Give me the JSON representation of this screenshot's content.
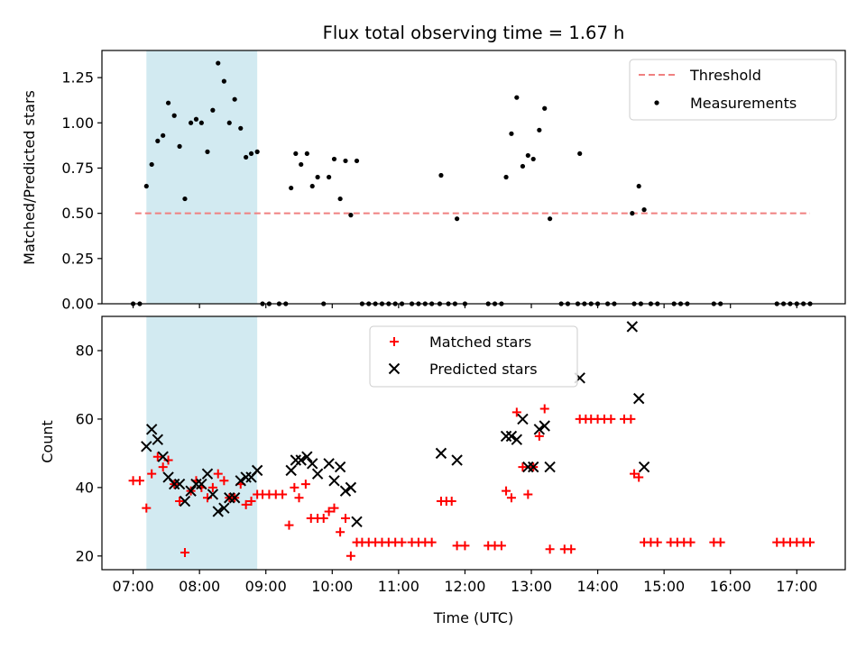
{
  "chart_data": [
    {
      "panel": "top",
      "type": "scatter",
      "title": "Flux total observing time = 1.67 h",
      "ylabel": "Matched/Predicted stars",
      "xlabel": "",
      "ylim": [
        0,
        1.4
      ],
      "yticks": [
        0.0,
        0.25,
        0.5,
        0.75,
        1.0,
        1.25
      ],
      "ytick_labels": [
        "0.00",
        "0.25",
        "0.50",
        "0.75",
        "1.00",
        "1.25"
      ],
      "xlim": [
        6.53,
        17.73
      ],
      "xticks": [
        7,
        8,
        9,
        10,
        11,
        12,
        13,
        14,
        15,
        16,
        17
      ],
      "highlight_span": [
        7.2,
        8.87
      ],
      "highlight_color": "#add8e6",
      "legend_position": "upper right",
      "threshold": {
        "name": "Threshold",
        "y": 0.5,
        "x_range": [
          7.03,
          17.2
        ],
        "color": "#f08080",
        "style": "dashed"
      },
      "series": [
        {
          "name": "Measurements",
          "color": "#000000",
          "marker": "dot",
          "points": [
            [
              7.0,
              0.0
            ],
            [
              7.1,
              0.0
            ],
            [
              7.2,
              0.65
            ],
            [
              7.28,
              0.77
            ],
            [
              7.37,
              0.9
            ],
            [
              7.45,
              0.93
            ],
            [
              7.53,
              1.11
            ],
            [
              7.62,
              1.04
            ],
            [
              7.7,
              0.87
            ],
            [
              7.78,
              0.58
            ],
            [
              7.87,
              1.0
            ],
            [
              7.95,
              1.02
            ],
            [
              8.03,
              1.0
            ],
            [
              8.12,
              0.84
            ],
            [
              8.2,
              1.07
            ],
            [
              8.28,
              1.33
            ],
            [
              8.37,
              1.23
            ],
            [
              8.45,
              1.0
            ],
            [
              8.53,
              1.13
            ],
            [
              8.62,
              0.97
            ],
            [
              8.7,
              0.81
            ],
            [
              8.78,
              0.83
            ],
            [
              8.87,
              0.84
            ],
            [
              8.95,
              0.0
            ],
            [
              9.05,
              0.0
            ],
            [
              9.2,
              0.0
            ],
            [
              9.3,
              0.0
            ],
            [
              9.38,
              0.64
            ],
            [
              9.45,
              0.83
            ],
            [
              9.53,
              0.77
            ],
            [
              9.62,
              0.83
            ],
            [
              9.7,
              0.65
            ],
            [
              9.78,
              0.7
            ],
            [
              9.87,
              0.0
            ],
            [
              9.95,
              0.7
            ],
            [
              10.03,
              0.8
            ],
            [
              10.12,
              0.58
            ],
            [
              10.2,
              0.79
            ],
            [
              10.28,
              0.49
            ],
            [
              10.37,
              0.79
            ],
            [
              10.45,
              0.0
            ],
            [
              10.55,
              0.0
            ],
            [
              10.65,
              0.0
            ],
            [
              10.75,
              0.0
            ],
            [
              10.85,
              0.0
            ],
            [
              10.95,
              0.0
            ],
            [
              11.05,
              0.0
            ],
            [
              11.2,
              0.0
            ],
            [
              11.3,
              0.0
            ],
            [
              11.4,
              0.0
            ],
            [
              11.5,
              0.0
            ],
            [
              11.62,
              0.0
            ],
            [
              11.64,
              0.71
            ],
            [
              11.75,
              0.0
            ],
            [
              11.85,
              0.0
            ],
            [
              11.88,
              0.47
            ],
            [
              12.0,
              0.0
            ],
            [
              12.35,
              0.0
            ],
            [
              12.45,
              0.0
            ],
            [
              12.55,
              0.0
            ],
            [
              12.62,
              0.7
            ],
            [
              12.7,
              0.94
            ],
            [
              12.78,
              1.14
            ],
            [
              12.87,
              0.76
            ],
            [
              12.95,
              0.82
            ],
            [
              13.03,
              0.8
            ],
            [
              13.12,
              0.96
            ],
            [
              13.2,
              1.08
            ],
            [
              13.28,
              0.47
            ],
            [
              13.45,
              0.0
            ],
            [
              13.55,
              0.0
            ],
            [
              13.7,
              0.0
            ],
            [
              13.73,
              0.83
            ],
            [
              13.8,
              0.0
            ],
            [
              13.9,
              0.0
            ],
            [
              14.0,
              0.0
            ],
            [
              14.15,
              0.0
            ],
            [
              14.25,
              0.0
            ],
            [
              14.52,
              0.5
            ],
            [
              14.62,
              0.65
            ],
            [
              14.7,
              0.52
            ],
            [
              14.55,
              0.0
            ],
            [
              14.65,
              0.0
            ],
            [
              14.8,
              0.0
            ],
            [
              14.9,
              0.0
            ],
            [
              15.15,
              0.0
            ],
            [
              15.25,
              0.0
            ],
            [
              15.35,
              0.0
            ],
            [
              15.75,
              0.0
            ],
            [
              15.85,
              0.0
            ],
            [
              16.7,
              0.0
            ],
            [
              16.8,
              0.0
            ],
            [
              16.9,
              0.0
            ],
            [
              17.0,
              0.0
            ],
            [
              17.1,
              0.0
            ],
            [
              17.2,
              0.0
            ]
          ]
        }
      ]
    },
    {
      "panel": "bottom",
      "type": "scatter",
      "title": "",
      "ylabel": "Count",
      "xlabel": "Time (UTC)",
      "ylim": [
        16,
        90
      ],
      "yticks": [
        20,
        40,
        60,
        80
      ],
      "xlim": [
        6.53,
        17.73
      ],
      "xticks": [
        7,
        8,
        9,
        10,
        11,
        12,
        13,
        14,
        15,
        16,
        17
      ],
      "xtick_labels": [
        "07:00",
        "08:00",
        "09:00",
        "10:00",
        "11:00",
        "12:00",
        "13:00",
        "14:00",
        "15:00",
        "16:00",
        "17:00"
      ],
      "highlight_span": [
        7.2,
        8.87
      ],
      "highlight_color": "#add8e6",
      "legend_position": "upper center",
      "series": [
        {
          "name": "Matched stars",
          "color": "#ff0000",
          "marker": "plus",
          "points": [
            [
              7.0,
              42
            ],
            [
              7.1,
              42
            ],
            [
              7.2,
              34
            ],
            [
              7.28,
              44
            ],
            [
              7.37,
              49
            ],
            [
              7.45,
              46
            ],
            [
              7.53,
              48
            ],
            [
              7.62,
              41
            ],
            [
              7.7,
              36
            ],
            [
              7.78,
              21
            ],
            [
              7.87,
              39
            ],
            [
              7.95,
              42
            ],
            [
              8.03,
              40
            ],
            [
              8.12,
              37
            ],
            [
              8.2,
              40
            ],
            [
              8.28,
              44
            ],
            [
              8.37,
              42
            ],
            [
              8.45,
              37
            ],
            [
              8.53,
              37
            ],
            [
              8.62,
              41
            ],
            [
              8.7,
              35
            ],
            [
              8.78,
              36
            ],
            [
              8.87,
              38
            ],
            [
              8.95,
              38
            ],
            [
              9.05,
              38
            ],
            [
              9.15,
              38
            ],
            [
              9.25,
              38
            ],
            [
              9.35,
              29
            ],
            [
              9.43,
              40
            ],
            [
              9.5,
              37
            ],
            [
              9.6,
              41
            ],
            [
              9.68,
              31
            ],
            [
              9.78,
              31
            ],
            [
              9.87,
              31
            ],
            [
              9.95,
              33
            ],
            [
              10.03,
              34
            ],
            [
              10.12,
              27
            ],
            [
              10.2,
              31
            ],
            [
              10.28,
              20
            ],
            [
              10.37,
              24
            ],
            [
              10.45,
              24
            ],
            [
              10.55,
              24
            ],
            [
              10.65,
              24
            ],
            [
              10.75,
              24
            ],
            [
              10.85,
              24
            ],
            [
              10.95,
              24
            ],
            [
              11.05,
              24
            ],
            [
              11.2,
              24
            ],
            [
              11.3,
              24
            ],
            [
              11.4,
              24
            ],
            [
              11.5,
              24
            ],
            [
              11.64,
              36
            ],
            [
              11.72,
              36
            ],
            [
              11.8,
              36
            ],
            [
              11.88,
              23
            ],
            [
              12.0,
              23
            ],
            [
              12.35,
              23
            ],
            [
              12.45,
              23
            ],
            [
              12.55,
              23
            ],
            [
              12.62,
              39
            ],
            [
              12.7,
              37
            ],
            [
              12.78,
              62
            ],
            [
              12.87,
              46
            ],
            [
              12.95,
              38
            ],
            [
              13.03,
              46
            ],
            [
              13.12,
              55
            ],
            [
              13.2,
              63
            ],
            [
              13.28,
              22
            ],
            [
              13.5,
              22
            ],
            [
              13.6,
              22
            ],
            [
              13.73,
              60
            ],
            [
              13.82,
              60
            ],
            [
              13.9,
              60
            ],
            [
              14.0,
              60
            ],
            [
              14.1,
              60
            ],
            [
              14.2,
              60
            ],
            [
              14.4,
              60
            ],
            [
              14.5,
              60
            ],
            [
              14.55,
              44
            ],
            [
              14.62,
              43
            ],
            [
              14.7,
              24
            ],
            [
              14.8,
              24
            ],
            [
              14.9,
              24
            ],
            [
              15.1,
              24
            ],
            [
              15.2,
              24
            ],
            [
              15.3,
              24
            ],
            [
              15.4,
              24
            ],
            [
              15.75,
              24
            ],
            [
              15.85,
              24
            ],
            [
              16.7,
              24
            ],
            [
              16.8,
              24
            ],
            [
              16.9,
              24
            ],
            [
              17.0,
              24
            ],
            [
              17.1,
              24
            ],
            [
              17.2,
              24
            ]
          ]
        },
        {
          "name": "Predicted stars",
          "color": "#000000",
          "marker": "x",
          "points": [
            [
              7.2,
              52
            ],
            [
              7.28,
              57
            ],
            [
              7.37,
              54
            ],
            [
              7.45,
              49
            ],
            [
              7.53,
              43
            ],
            [
              7.62,
              41
            ],
            [
              7.7,
              41
            ],
            [
              7.78,
              36
            ],
            [
              7.87,
              39
            ],
            [
              7.95,
              41
            ],
            [
              8.03,
              41
            ],
            [
              8.12,
              44
            ],
            [
              8.2,
              38
            ],
            [
              8.28,
              33
            ],
            [
              8.37,
              34
            ],
            [
              8.45,
              37
            ],
            [
              8.53,
              37
            ],
            [
              8.62,
              42
            ],
            [
              8.7,
              43
            ],
            [
              8.78,
              43
            ],
            [
              8.87,
              45
            ],
            [
              9.38,
              45
            ],
            [
              9.45,
              48
            ],
            [
              9.53,
              48
            ],
            [
              9.62,
              49
            ],
            [
              9.7,
              47
            ],
            [
              9.78,
              44
            ],
            [
              9.95,
              47
            ],
            [
              10.03,
              42
            ],
            [
              10.12,
              46
            ],
            [
              10.2,
              39
            ],
            [
              10.28,
              40
            ],
            [
              10.37,
              30
            ],
            [
              11.64,
              50
            ],
            [
              11.88,
              48
            ],
            [
              12.62,
              55
            ],
            [
              12.7,
              55
            ],
            [
              12.78,
              54
            ],
            [
              12.87,
              60
            ],
            [
              12.95,
              46
            ],
            [
              13.03,
              46
            ],
            [
              13.12,
              57
            ],
            [
              13.2,
              58
            ],
            [
              13.28,
              46
            ],
            [
              13.73,
              72
            ],
            [
              14.52,
              87
            ],
            [
              14.62,
              66
            ],
            [
              14.7,
              46
            ]
          ]
        }
      ]
    }
  ]
}
